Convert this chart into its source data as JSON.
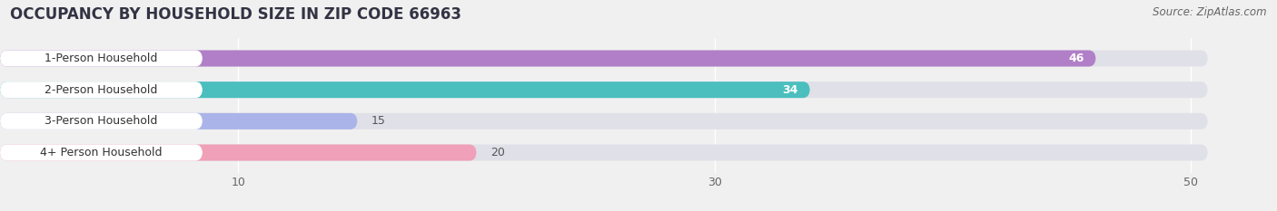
{
  "title": "OCCUPANCY BY HOUSEHOLD SIZE IN ZIP CODE 66963",
  "source": "Source: ZipAtlas.com",
  "categories": [
    "1-Person Household",
    "2-Person Household",
    "3-Person Household",
    "4+ Person Household"
  ],
  "values": [
    46,
    34,
    15,
    20
  ],
  "bar_colors": [
    "#b07fc7",
    "#4bbfbe",
    "#aab4e8",
    "#f0a0b8"
  ],
  "label_colors": [
    "white",
    "white",
    "black",
    "black"
  ],
  "value_text_colors": [
    "white",
    "white",
    "#666666",
    "#666666"
  ],
  "xlim_max": 52,
  "xticks": [
    10,
    30,
    50
  ],
  "background_color": "#f0f0f0",
  "bar_bg_color": "#e0e0e8",
  "label_pill_color": "#ffffff",
  "title_fontsize": 12,
  "source_fontsize": 8.5,
  "label_fontsize": 9,
  "value_fontsize": 9,
  "tick_fontsize": 9,
  "bar_height": 0.52,
  "figsize": [
    14.06,
    2.33
  ],
  "dpi": 100
}
